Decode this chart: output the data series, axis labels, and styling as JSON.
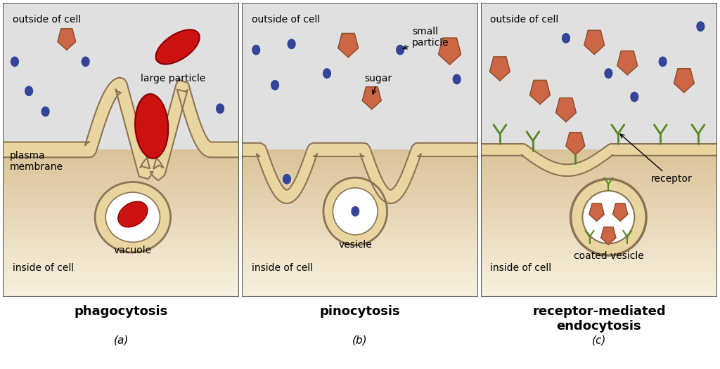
{
  "bg_outside": "#e0e0e0",
  "bg_inside_top": "#f5f0e0",
  "bg_inside_bot": "#e8cc80",
  "membrane_fill": "#e8d5a0",
  "membrane_edge": "#8B7355",
  "large_particle_color": "#cc1111",
  "small_particle_color": "#cc6644",
  "blue_dot_color": "#334499",
  "receptor_color": "#558822",
  "title_fontsize": 13,
  "label_fontsize": 10,
  "panel_labels": [
    "(a)",
    "(b)",
    "(c)"
  ],
  "panel_titles": [
    "phagocytosis",
    "pinocytosis",
    "receptor-mediated\nendocytosis"
  ]
}
